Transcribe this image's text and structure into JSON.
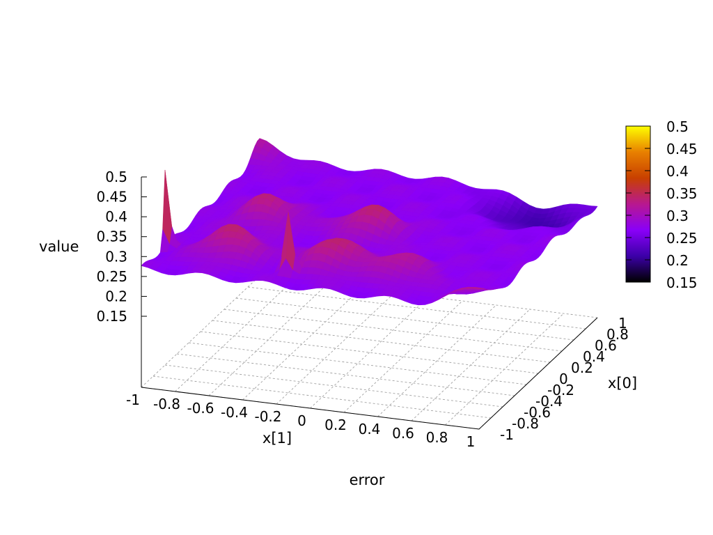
{
  "chart_data": {
    "type": "surface",
    "title": "",
    "xlabel": "x[1]",
    "ylabel": "x[0]",
    "zlabel": "value",
    "caption": "error",
    "xlim": [
      -1,
      1
    ],
    "ylim": [
      -1,
      1
    ],
    "zlim": [
      0.15,
      0.5
    ],
    "x_ticks": [
      "-1",
      "-0.8",
      "-0.6",
      "-0.4",
      "-0.2",
      "0",
      "0.2",
      "0.4",
      "0.6",
      "0.8",
      "1"
    ],
    "y_ticks": [
      "-1",
      "-0.8",
      "-0.6",
      "-0.4",
      "-0.2",
      "0",
      "0.2",
      "0.4",
      "0.6",
      "0.8",
      "1"
    ],
    "z_ticks": [
      "0.5",
      "0.45",
      "0.4",
      "0.35",
      "0.3",
      "0.25",
      "0.2",
      "0.15"
    ],
    "colorbar": {
      "range": [
        0.15,
        0.5
      ],
      "ticks": [
        "0.5",
        "0.45",
        "0.4",
        "0.35",
        "0.3",
        "0.25",
        "0.2",
        "0.15"
      ],
      "palette": [
        "#000000",
        "#3c00a8",
        "#8a00f8",
        "#b81890",
        "#c84000",
        "#e88000",
        "#ffff00"
      ]
    },
    "grid": true,
    "features": {
      "base": 0.27,
      "bumps": [
        {
          "x": -0.6,
          "y": -0.6,
          "height": 0.07
        },
        {
          "x": 0.0,
          "y": -0.6,
          "height": 0.07
        },
        {
          "x": -0.6,
          "y": 0.0,
          "height": 0.06
        },
        {
          "x": 0.0,
          "y": 0.0,
          "height": 0.07
        },
        {
          "x": 0.4,
          "y": -0.6,
          "height": 0.05
        },
        {
          "x": 1.0,
          "y": -1.0,
          "height": 0.06
        },
        {
          "x": -1.0,
          "y": 1.0,
          "height": 0.04
        }
      ],
      "dips": [
        {
          "x": 0.7,
          "y": 0.8,
          "depth": 0.06
        }
      ],
      "spikes": [
        {
          "x": -1.0,
          "y": -0.6,
          "value": 0.5
        },
        {
          "x": -0.2,
          "y": -0.8,
          "value": 0.46
        }
      ]
    }
  }
}
